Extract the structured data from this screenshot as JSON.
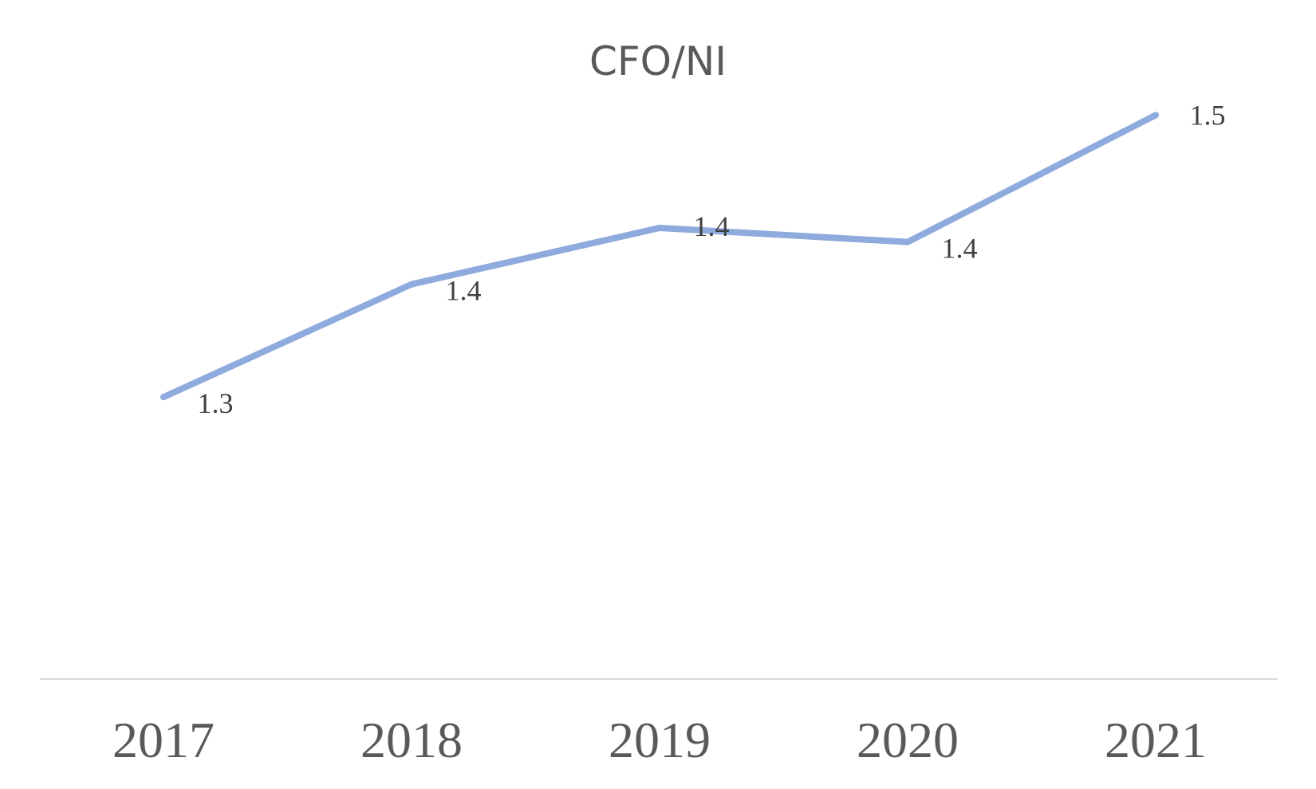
{
  "chart_data": {
    "type": "line",
    "title": "CFO/NI",
    "categories": [
      "2017",
      "2018",
      "2019",
      "2020",
      "2021"
    ],
    "series": [
      {
        "values": [
          1.3,
          1.38,
          1.42,
          1.41,
          1.5
        ],
        "labels": [
          "1.3",
          "1.4",
          "1.4",
          "1.4",
          "1.5"
        ]
      }
    ],
    "xlabel": "",
    "ylabel": "",
    "ylim": [
      1.1,
      1.55
    ],
    "grid": false,
    "legend": "none",
    "colors": {
      "series": "#8faadc",
      "axis": "#d9d9d9",
      "text": "#595959"
    }
  }
}
